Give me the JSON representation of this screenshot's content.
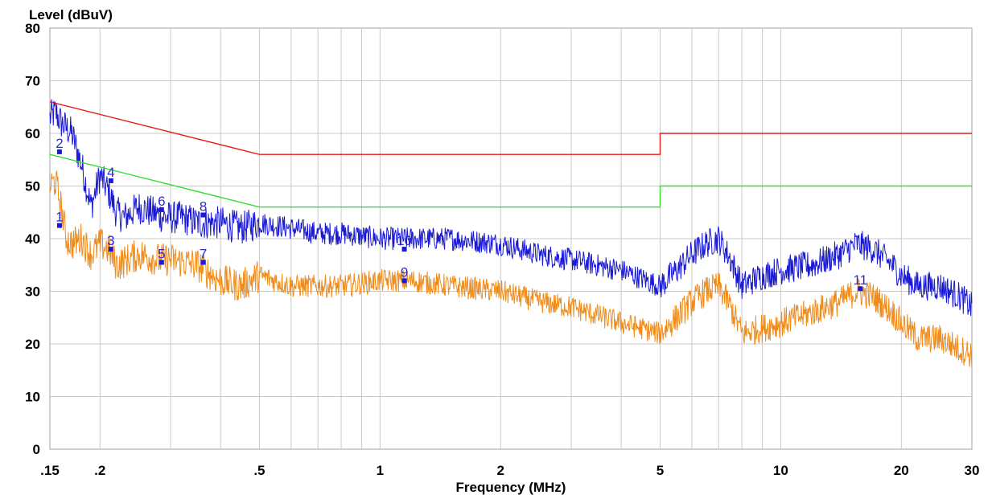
{
  "chart_data": {
    "type": "line",
    "ylabel": "Level (dBuV)",
    "xlabel": "Frequency (MHz)",
    "x_scale": "log",
    "xlim": [
      0.15,
      30
    ],
    "ylim": [
      0,
      80
    ],
    "grid": true,
    "y_ticks": [
      0,
      10,
      20,
      30,
      40,
      50,
      60,
      70,
      80
    ],
    "y_tick_labels": [
      "0",
      "10",
      "20",
      "30",
      "40",
      "50",
      "60",
      "70",
      "80"
    ],
    "x_ticks": [
      0.15,
      0.2,
      0.5,
      1,
      2,
      5,
      10,
      20,
      30
    ],
    "x_tick_labels": [
      ".15",
      ".2",
      ".5",
      "1",
      "2",
      "5",
      "10",
      "20",
      "30"
    ],
    "series": [
      {
        "color": "#1a1ad6",
        "points": [
          [
            0.15,
            63
          ],
          [
            0.155,
            64
          ],
          [
            0.16,
            62
          ],
          [
            0.165,
            61
          ],
          [
            0.17,
            60
          ],
          [
            0.175,
            57
          ],
          [
            0.18,
            54
          ],
          [
            0.185,
            50
          ],
          [
            0.19,
            46
          ],
          [
            0.2,
            52
          ],
          [
            0.21,
            49
          ],
          [
            0.22,
            45
          ],
          [
            0.23,
            44
          ],
          [
            0.25,
            46
          ],
          [
            0.27,
            45
          ],
          [
            0.29,
            44
          ],
          [
            0.32,
            44
          ],
          [
            0.35,
            43
          ],
          [
            0.4,
            43
          ],
          [
            0.45,
            42
          ],
          [
            0.5,
            43
          ],
          [
            0.6,
            42
          ],
          [
            0.7,
            41
          ],
          [
            0.8,
            41
          ],
          [
            1.0,
            40
          ],
          [
            1.2,
            40
          ],
          [
            1.5,
            40
          ],
          [
            2.0,
            39
          ],
          [
            2.5,
            37
          ],
          [
            3.0,
            36
          ],
          [
            4.0,
            34
          ],
          [
            5.0,
            31
          ],
          [
            5.5,
            34
          ],
          [
            6.0,
            37
          ],
          [
            6.5,
            39
          ],
          [
            7.0,
            40
          ],
          [
            7.5,
            36
          ],
          [
            8.0,
            31
          ],
          [
            9.0,
            33
          ],
          [
            10.0,
            34
          ],
          [
            12.0,
            35
          ],
          [
            14.0,
            37
          ],
          [
            15.5,
            39
          ],
          [
            17.0,
            38
          ],
          [
            19.0,
            35
          ],
          [
            20.0,
            33
          ],
          [
            22.0,
            31
          ],
          [
            25.0,
            31
          ],
          [
            28.0,
            29
          ],
          [
            30.0,
            27
          ]
        ]
      },
      {
        "color": "#f08c1a",
        "points": [
          [
            0.15,
            50
          ],
          [
            0.155,
            51
          ],
          [
            0.16,
            46
          ],
          [
            0.165,
            40
          ],
          [
            0.17,
            39
          ],
          [
            0.18,
            40
          ],
          [
            0.19,
            37
          ],
          [
            0.2,
            39
          ],
          [
            0.21,
            38
          ],
          [
            0.22,
            35
          ],
          [
            0.25,
            37
          ],
          [
            0.28,
            36
          ],
          [
            0.3,
            36
          ],
          [
            0.35,
            35
          ],
          [
            0.4,
            32
          ],
          [
            0.45,
            31
          ],
          [
            0.5,
            33
          ],
          [
            0.6,
            31
          ],
          [
            0.7,
            31
          ],
          [
            0.8,
            31
          ],
          [
            1.0,
            32
          ],
          [
            1.2,
            32
          ],
          [
            1.5,
            31
          ],
          [
            2.0,
            30
          ],
          [
            2.5,
            28
          ],
          [
            3.0,
            27
          ],
          [
            4.0,
            24
          ],
          [
            5.0,
            22
          ],
          [
            5.5,
            25
          ],
          [
            6.0,
            28
          ],
          [
            6.5,
            30
          ],
          [
            7.0,
            31
          ],
          [
            7.5,
            27
          ],
          [
            8.0,
            22
          ],
          [
            9.0,
            23
          ],
          [
            10.0,
            24
          ],
          [
            12.0,
            26
          ],
          [
            14.0,
            28
          ],
          [
            15.5,
            30
          ],
          [
            17.0,
            29
          ],
          [
            19.0,
            26
          ],
          [
            20.0,
            24
          ],
          [
            22.0,
            21
          ],
          [
            25.0,
            21
          ],
          [
            28.0,
            19
          ],
          [
            30.0,
            18
          ]
        ]
      },
      {
        "color": "#e81a1a",
        "points": [
          [
            0.15,
            66
          ],
          [
            0.5,
            56
          ],
          [
            5.0,
            56
          ],
          [
            5.0,
            60
          ],
          [
            30.0,
            60
          ]
        ]
      },
      {
        "color": "#33dd33",
        "points": [
          [
            0.15,
            56
          ],
          [
            0.5,
            46
          ],
          [
            5.0,
            46
          ],
          [
            5.0,
            50
          ],
          [
            30.0,
            50
          ]
        ]
      }
    ],
    "markers": [
      {
        "label": "1",
        "x": 0.1585,
        "y": 42.5
      },
      {
        "label": "2",
        "x": 0.1585,
        "y": 56.5
      },
      {
        "label": "3",
        "x": 0.213,
        "y": 38
      },
      {
        "label": "4",
        "x": 0.213,
        "y": 51
      },
      {
        "label": "5",
        "x": 0.285,
        "y": 35.5
      },
      {
        "label": "6",
        "x": 0.285,
        "y": 45.5
      },
      {
        "label": "7",
        "x": 0.362,
        "y": 35.5
      },
      {
        "label": "8",
        "x": 0.362,
        "y": 44.5
      },
      {
        "label": "9",
        "x": 1.15,
        "y": 32
      },
      {
        "label": "10",
        "x": 1.15,
        "y": 38
      },
      {
        "label": "11",
        "x": 15.8,
        "y": 30.5
      }
    ]
  }
}
